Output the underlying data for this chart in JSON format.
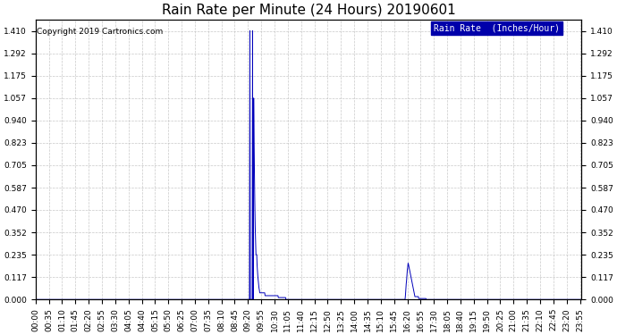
{
  "title": "Rain Rate per Minute (24 Hours) 20190601",
  "copyright_text": "Copyright 2019 Cartronics.com",
  "legend_label": "Rain Rate  (Inches/Hour)",
  "yticks": [
    0.0,
    0.117,
    0.235,
    0.352,
    0.47,
    0.587,
    0.705,
    0.823,
    0.94,
    1.057,
    1.175,
    1.292,
    1.41
  ],
  "ymin": 0.0,
  "ymax": 1.47,
  "line_color": "#0000bb",
  "background_color": "#ffffff",
  "plot_bg_color": "#ffffff",
  "grid_color": "#bbbbbb",
  "title_fontsize": 11,
  "tick_fontsize": 6.5,
  "copyright_fontsize": 6.5,
  "legend_fontsize": 7,
  "total_minutes": 1440,
  "xtick_step": 35,
  "figwidth": 6.9,
  "figheight": 3.75,
  "dpi": 100
}
